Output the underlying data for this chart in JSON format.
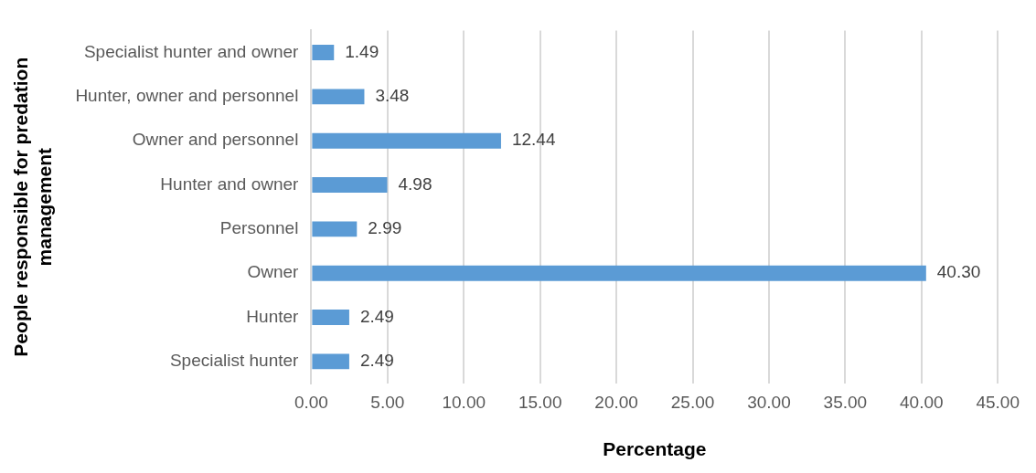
{
  "chart_data": {
    "type": "bar",
    "orientation": "horizontal",
    "xlabel": "Percentage",
    "ylabel": "People responsible for predation management",
    "categories": [
      "Specialist hunter and owner",
      "Hunter, owner and personnel",
      "Owner and personnel",
      "Hunter and owner",
      "Personnel",
      "Owner",
      "Hunter",
      "Specialist hunter"
    ],
    "values": [
      1.49,
      3.48,
      12.44,
      4.98,
      2.99,
      40.3,
      2.49,
      2.49
    ],
    "value_labels": [
      "1.49",
      "3.48",
      "12.44",
      "4.98",
      "2.99",
      "40.30",
      "2.49",
      "2.49"
    ],
    "color": "#5b9bd5",
    "xlim": [
      0,
      45
    ],
    "xticks": [
      {
        "value": 0,
        "label": "0.00"
      },
      {
        "value": 5,
        "label": "5.00"
      },
      {
        "value": 10,
        "label": "10.00"
      },
      {
        "value": 15,
        "label": "15.00"
      },
      {
        "value": 20,
        "label": "20.00"
      },
      {
        "value": 25,
        "label": "25.00"
      },
      {
        "value": 30,
        "label": "30.00"
      },
      {
        "value": 35,
        "label": "35.00"
      },
      {
        "value": 40,
        "label": "40.00"
      },
      {
        "value": 45,
        "label": "45.00"
      }
    ],
    "grid": "x",
    "legend": false
  }
}
